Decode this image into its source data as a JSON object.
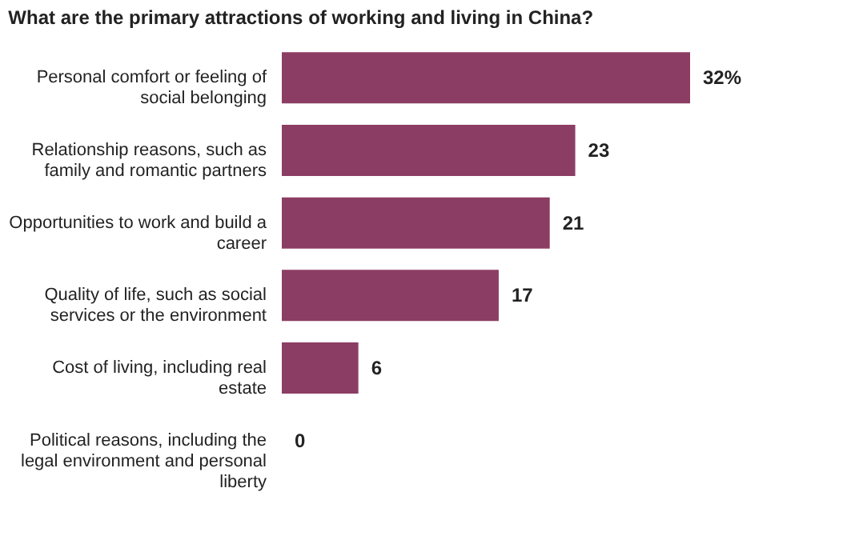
{
  "chart_data": {
    "type": "bar",
    "orientation": "horizontal",
    "title": "What are the primary attractions of working and living in China?",
    "categories": [
      "Personal comfort or feeling of social belonging",
      "Relationship reasons, such as family and romantic partners",
      "Opportunities to work and build a career",
      "Quality of life, such as social services or the environment",
      "Cost of living, including real estate",
      "Political reasons, including the legal environment and personal liberty"
    ],
    "values": [
      32,
      23,
      21,
      17,
      6,
      0
    ],
    "value_labels": [
      "32%",
      "23",
      "21",
      "17",
      "6",
      "0"
    ],
    "color": "#8c3d63"
  }
}
